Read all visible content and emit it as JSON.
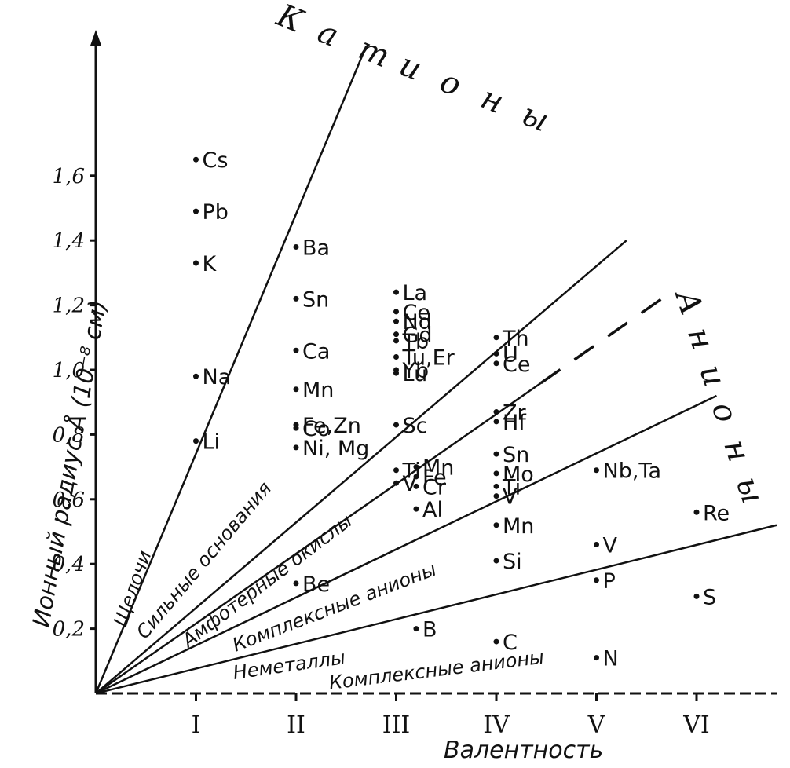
{
  "chart_data": {
    "type": "scatter",
    "xlabel": "Валентность",
    "ylabel": "Ионный радиус Å (10⁻⁸ см)",
    "x_tick_labels": [
      "I",
      "II",
      "III",
      "IV",
      "V",
      "VI"
    ],
    "y_ticks": [
      0.2,
      0.4,
      0.6,
      0.8,
      1.0,
      1.2,
      1.4,
      1.6
    ],
    "y_tick_labels": [
      "0,2",
      "0,4",
      "0,6",
      "0,8",
      "1,0",
      "1,2",
      "1,4",
      "1,6"
    ],
    "xlim": [
      0,
      6.8
    ],
    "ylim": [
      0,
      2.0
    ],
    "grid": false,
    "title_cations": "Катионы",
    "title_anions": "Анионы",
    "points": [
      {
        "label": "Cs",
        "x": 1,
        "y": 1.65
      },
      {
        "label": "Pb",
        "x": 1,
        "y": 1.49
      },
      {
        "label": "K",
        "x": 1,
        "y": 1.33
      },
      {
        "label": "Na",
        "x": 1,
        "y": 0.98
      },
      {
        "label": "Li",
        "x": 1,
        "y": 0.78
      },
      {
        "label": "Ba",
        "x": 2,
        "y": 1.38
      },
      {
        "label": "Sn",
        "x": 2,
        "y": 1.22
      },
      {
        "label": "Ca",
        "x": 2,
        "y": 1.06
      },
      {
        "label": "Mn",
        "x": 2,
        "y": 0.94
      },
      {
        "label": "Co",
        "x": 2,
        "y": 0.82
      },
      {
        "label": "Fe,Zn",
        "x": 2,
        "y": 0.83
      },
      {
        "label": "Ni, Mg",
        "x": 2,
        "y": 0.76
      },
      {
        "label": "Be",
        "x": 2,
        "y": 0.34
      },
      {
        "label": "La",
        "x": 3,
        "y": 1.24
      },
      {
        "label": "Ce",
        "x": 3,
        "y": 1.18
      },
      {
        "label": "Gd",
        "x": 3,
        "y": 1.11
      },
      {
        "label": "Tu,Er",
        "x": 3,
        "y": 1.04
      },
      {
        "label": "Lu",
        "x": 3,
        "y": 0.99
      },
      {
        "label": "Nd",
        "x": 3,
        "y": 1.15
      },
      {
        "label": "Tb",
        "x": 3,
        "y": 1.09
      },
      {
        "label": "Yb",
        "x": 3,
        "y": 1.0
      },
      {
        "label": "Sc",
        "x": 3,
        "y": 0.83
      },
      {
        "label": "Ti",
        "x": 3,
        "y": 0.69
      },
      {
        "label": "V",
        "x": 3,
        "y": 0.65
      },
      {
        "label": "Mn",
        "x": 3.2,
        "y": 0.7
      },
      {
        "label": "Fe",
        "x": 3.2,
        "y": 0.67
      },
      {
        "label": "Cr",
        "x": 3.2,
        "y": 0.64
      },
      {
        "label": "Al",
        "x": 3.2,
        "y": 0.57
      },
      {
        "label": "B",
        "x": 3.2,
        "y": 0.2
      },
      {
        "label": "Th",
        "x": 4,
        "y": 1.1
      },
      {
        "label": "U",
        "x": 4,
        "y": 1.05
      },
      {
        "label": "Ce",
        "x": 4,
        "y": 1.02
      },
      {
        "label": "Hf",
        "x": 4,
        "y": 0.84
      },
      {
        "label": "Zr",
        "x": 4,
        "y": 0.87
      },
      {
        "label": "Ti",
        "x": 4,
        "y": 0.64
      },
      {
        "label": "Sn",
        "x": 4,
        "y": 0.74
      },
      {
        "label": "Mo",
        "x": 4,
        "y": 0.68
      },
      {
        "label": "V",
        "x": 4,
        "y": 0.61
      },
      {
        "label": "Mn",
        "x": 4,
        "y": 0.52
      },
      {
        "label": "Si",
        "x": 4,
        "y": 0.41
      },
      {
        "label": "C",
        "x": 4,
        "y": 0.16
      },
      {
        "label": "Nb,Ta",
        "x": 5,
        "y": 0.69
      },
      {
        "label": "V",
        "x": 5,
        "y": 0.46
      },
      {
        "label": "P",
        "x": 5,
        "y": 0.35
      },
      {
        "label": "N",
        "x": 5,
        "y": 0.11
      },
      {
        "label": "Re",
        "x": 6,
        "y": 0.56
      },
      {
        "label": "S",
        "x": 6,
        "y": 0.3
      }
    ],
    "boundary_lines": [
      {
        "name": "Щелочи / Сильные основания",
        "end_x": 2.7,
        "end_y": 2.0
      },
      {
        "name": "Сильные основания / Амфотерные окислы",
        "end_x": 5.3,
        "end_y": 1.4
      },
      {
        "name": "Амфотерные окислы / Комплексные анионы",
        "end_x": 5.7,
        "end_y": 1.23,
        "dashed_part": true
      },
      {
        "name": "Комплексные анионы / Неметаллы",
        "end_x": 6.2,
        "end_y": 0.92
      },
      {
        "name": "lowest",
        "end_x": 6.8,
        "end_y": 0.52
      }
    ],
    "region_labels": [
      "Щелочи",
      "Сильные основания",
      "Амфотерные окислы",
      "Комплексные анионы",
      "Неметаллы",
      "Комплексные анионы"
    ]
  }
}
